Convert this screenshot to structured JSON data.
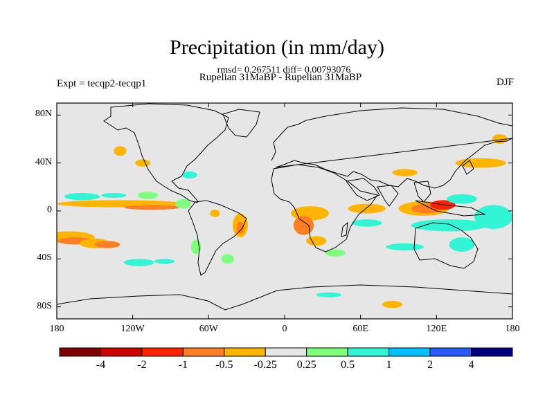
{
  "title": "Precipitation (in mm/day)",
  "stats": "rmsd= 0.267511 diff= 0.00793076",
  "subtitle": "Rupelian  31MaBP - Rupelian  31MaBP",
  "experiment": "Expt = tecqp2-tecqp1",
  "season": "DJF",
  "colors": {
    "land_bg": "#e6e6e6",
    "levels": [
      "#7f0000",
      "#cc0000",
      "#ff2200",
      "#ff7f22",
      "#ffb400",
      "#e6e6e6",
      "#7fff7f",
      "#32f5d5",
      "#00c0ff",
      "#2a5aff",
      "#00007f"
    ]
  },
  "chart_data": {
    "type": "heatmap",
    "projection": "equirectangular",
    "lon_range": [
      -180,
      180
    ],
    "lat_range": [
      -90,
      90
    ],
    "lat_ticks": [
      "80N",
      "40N",
      "0",
      "40S",
      "80S"
    ],
    "lat_tick_values": [
      80,
      40,
      0,
      -40,
      -80
    ],
    "lon_ticks": [
      "180",
      "120W",
      "60W",
      "0",
      "60E",
      "120E",
      "180"
    ],
    "lon_tick_values": [
      -180,
      -120,
      -60,
      0,
      60,
      120,
      180
    ],
    "colorbar_labels": [
      "-4",
      "-2",
      "-1",
      "-0.5",
      "-0.25",
      "0.25",
      "0.5",
      "1",
      "2",
      "4"
    ],
    "colorbar_levels": [
      -4,
      -2,
      -1,
      -0.5,
      -0.25,
      0.25,
      0.5,
      1,
      2,
      4
    ],
    "anomaly_regions": [
      {
        "lon": -170,
        "lat": -22,
        "rx": 20,
        "ry": 5,
        "level": 4
      },
      {
        "lon": -165,
        "lat": -25,
        "rx": 14,
        "ry": 3,
        "level": 3
      },
      {
        "lon": -150,
        "lat": -27,
        "rx": 12,
        "ry": 4,
        "level": 4
      },
      {
        "lon": -140,
        "lat": -28,
        "rx": 10,
        "ry": 3,
        "level": 3
      },
      {
        "lon": -130,
        "lat": 6,
        "rx": 50,
        "ry": 3,
        "level": 4
      },
      {
        "lon": -105,
        "lat": 3,
        "rx": 22,
        "ry": 2,
        "level": 3
      },
      {
        "lon": -160,
        "lat": 12,
        "rx": 14,
        "ry": 3,
        "level": 7
      },
      {
        "lon": -135,
        "lat": 13,
        "rx": 10,
        "ry": 2,
        "level": 7
      },
      {
        "lon": -108,
        "lat": 13,
        "rx": 8,
        "ry": 3,
        "level": 6
      },
      {
        "lon": -80,
        "lat": 6,
        "rx": 6,
        "ry": 4,
        "level": 6
      },
      {
        "lon": -35,
        "lat": -12,
        "rx": 6,
        "ry": 10,
        "level": 4
      },
      {
        "lon": -35,
        "lat": -14,
        "rx": 3,
        "ry": 5,
        "level": 3
      },
      {
        "lon": -55,
        "lat": -2,
        "rx": 4,
        "ry": 3,
        "level": 4
      },
      {
        "lon": -70,
        "lat": -30,
        "rx": 4,
        "ry": 6,
        "level": 6
      },
      {
        "lon": -45,
        "lat": -40,
        "rx": 5,
        "ry": 4,
        "level": 6
      },
      {
        "lon": 20,
        "lat": -2,
        "rx": 15,
        "ry": 6,
        "level": 4
      },
      {
        "lon": 15,
        "lat": -12,
        "rx": 8,
        "ry": 8,
        "level": 3
      },
      {
        "lon": 25,
        "lat": -25,
        "rx": 8,
        "ry": 4,
        "level": 4
      },
      {
        "lon": 40,
        "lat": -35,
        "rx": 8,
        "ry": 3,
        "level": 6
      },
      {
        "lon": 65,
        "lat": 2,
        "rx": 15,
        "ry": 4,
        "level": 4
      },
      {
        "lon": 65,
        "lat": -10,
        "rx": 12,
        "ry": 3,
        "level": 7
      },
      {
        "lon": 110,
        "lat": 2,
        "rx": 20,
        "ry": 6,
        "level": 4
      },
      {
        "lon": 112,
        "lat": 2,
        "rx": 12,
        "ry": 4,
        "level": 3
      },
      {
        "lon": 125,
        "lat": 5,
        "rx": 10,
        "ry": 4,
        "level": 2
      },
      {
        "lon": 140,
        "lat": 10,
        "rx": 12,
        "ry": 4,
        "level": 7
      },
      {
        "lon": 130,
        "lat": -12,
        "rx": 30,
        "ry": 5,
        "level": 7
      },
      {
        "lon": 165,
        "lat": -5,
        "rx": 15,
        "ry": 10,
        "level": 7
      },
      {
        "lon": 140,
        "lat": -28,
        "rx": 10,
        "ry": 6,
        "level": 7
      },
      {
        "lon": 95,
        "lat": 32,
        "rx": 10,
        "ry": 3,
        "level": 4
      },
      {
        "lon": 155,
        "lat": 40,
        "rx": 20,
        "ry": 4,
        "level": 4
      },
      {
        "lon": 170,
        "lat": 60,
        "rx": 6,
        "ry": 4,
        "level": 4
      },
      {
        "lon": -115,
        "lat": -43,
        "rx": 12,
        "ry": 3,
        "level": 7
      },
      {
        "lon": -95,
        "lat": -42,
        "rx": 8,
        "ry": 2,
        "level": 7
      },
      {
        "lon": 95,
        "lat": -30,
        "rx": 15,
        "ry": 3,
        "level": 7
      },
      {
        "lon": 35,
        "lat": -70,
        "rx": 10,
        "ry": 2,
        "level": 7
      },
      {
        "lon": 85,
        "lat": -78,
        "rx": 8,
        "ry": 3,
        "level": 4
      },
      {
        "lon": -112,
        "lat": 40,
        "rx": 6,
        "ry": 3,
        "level": 4
      },
      {
        "lon": -130,
        "lat": 50,
        "rx": 5,
        "ry": 4,
        "level": 4
      },
      {
        "lon": -75,
        "lat": 30,
        "rx": 6,
        "ry": 3,
        "level": 7
      }
    ]
  }
}
